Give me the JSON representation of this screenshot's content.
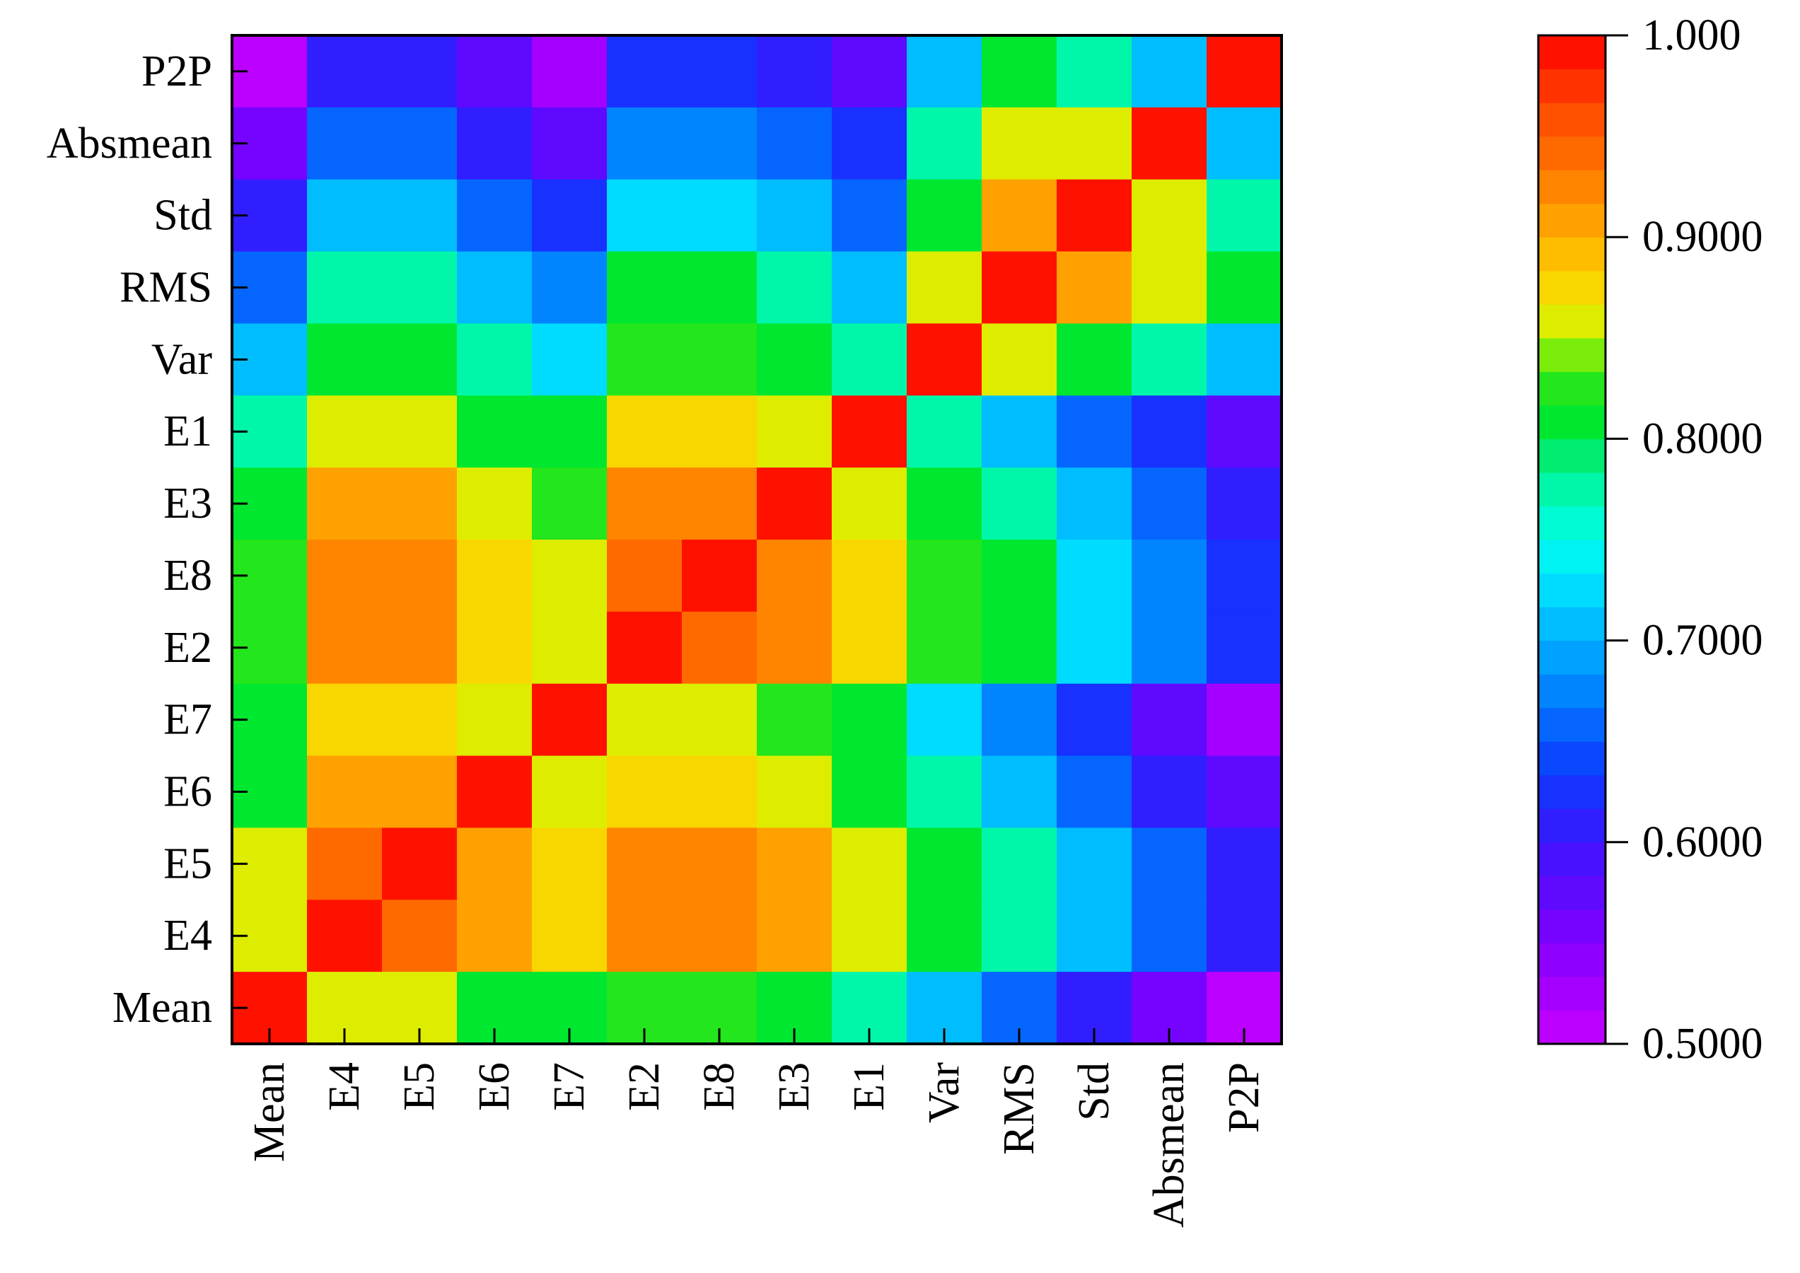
{
  "chart_data": {
    "type": "heatmap",
    "title": "",
    "xlabel": "",
    "ylabel": "",
    "x_categories": [
      "Mean",
      "E4",
      "E5",
      "E6",
      "E7",
      "E2",
      "E8",
      "E3",
      "E1",
      "Var",
      "RMS",
      "Std",
      "Absmean",
      "P2P"
    ],
    "y_categories_top_to_bottom": [
      "P2P",
      "Absmean",
      "Std",
      "RMS",
      "Var",
      "E1",
      "E3",
      "E8",
      "E2",
      "E7",
      "E6",
      "E5",
      "E4",
      "Mean"
    ],
    "values_top_to_bottom": [
      [
        0.51,
        0.61,
        0.61,
        0.57,
        0.53,
        0.62,
        0.62,
        0.61,
        0.57,
        0.71,
        0.8,
        0.78,
        0.71,
        1.0
      ],
      [
        0.56,
        0.66,
        0.66,
        0.61,
        0.58,
        0.68,
        0.68,
        0.66,
        0.62,
        0.78,
        0.85,
        0.85,
        1.0,
        0.71
      ],
      [
        0.61,
        0.71,
        0.71,
        0.66,
        0.63,
        0.73,
        0.73,
        0.71,
        0.66,
        0.8,
        0.9,
        1.0,
        0.85,
        0.78
      ],
      [
        0.66,
        0.78,
        0.78,
        0.71,
        0.68,
        0.8,
        0.8,
        0.78,
        0.71,
        0.85,
        1.0,
        0.9,
        0.85,
        0.8
      ],
      [
        0.71,
        0.8,
        0.8,
        0.78,
        0.73,
        0.82,
        0.82,
        0.8,
        0.78,
        1.0,
        0.85,
        0.8,
        0.78,
        0.71
      ],
      [
        0.78,
        0.85,
        0.85,
        0.8,
        0.8,
        0.88,
        0.88,
        0.85,
        1.0,
        0.78,
        0.71,
        0.66,
        0.62,
        0.57
      ],
      [
        0.8,
        0.9,
        0.9,
        0.85,
        0.82,
        0.93,
        0.93,
        1.0,
        0.85,
        0.8,
        0.78,
        0.71,
        0.66,
        0.61
      ],
      [
        0.82,
        0.93,
        0.93,
        0.88,
        0.85,
        0.95,
        1.0,
        0.93,
        0.88,
        0.82,
        0.8,
        0.73,
        0.68,
        0.62
      ],
      [
        0.82,
        0.93,
        0.93,
        0.88,
        0.85,
        1.0,
        0.95,
        0.93,
        0.88,
        0.82,
        0.8,
        0.73,
        0.68,
        0.62
      ],
      [
        0.8,
        0.88,
        0.88,
        0.85,
        1.0,
        0.85,
        0.85,
        0.82,
        0.8,
        0.73,
        0.68,
        0.63,
        0.58,
        0.53
      ],
      [
        0.8,
        0.9,
        0.9,
        1.0,
        0.85,
        0.88,
        0.88,
        0.85,
        0.8,
        0.78,
        0.71,
        0.66,
        0.61,
        0.57
      ],
      [
        0.85,
        0.95,
        1.0,
        0.9,
        0.88,
        0.93,
        0.93,
        0.9,
        0.85,
        0.8,
        0.78,
        0.71,
        0.66,
        0.61
      ],
      [
        0.85,
        1.0,
        0.95,
        0.9,
        0.88,
        0.93,
        0.93,
        0.9,
        0.85,
        0.8,
        0.78,
        0.71,
        0.66,
        0.61
      ],
      [
        1.0,
        0.85,
        0.85,
        0.8,
        0.8,
        0.82,
        0.82,
        0.8,
        0.78,
        0.71,
        0.66,
        0.61,
        0.56,
        0.51
      ]
    ],
    "colorbar": {
      "min": 0.5,
      "max": 1.0,
      "levels": 30,
      "ticks": [
        {
          "value": 1.0,
          "label": "1.000"
        },
        {
          "value": 0.9,
          "label": "0.9000"
        },
        {
          "value": 0.8,
          "label": "0.8000"
        },
        {
          "value": 0.7,
          "label": "0.7000"
        },
        {
          "value": 0.6,
          "label": "0.6000"
        },
        {
          "value": 0.5,
          "label": "0.5000"
        }
      ],
      "placement": "right"
    },
    "grid": false
  }
}
